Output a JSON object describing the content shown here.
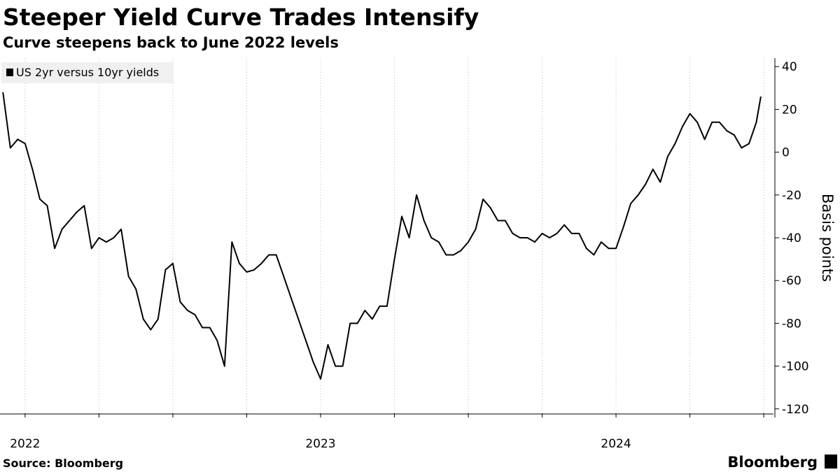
{
  "chart_data": {
    "type": "line",
    "title": "Steeper Yield Curve Trades Intensify",
    "subtitle": "Curve steepens back to June 2022 levels",
    "ylabel": "Basis points",
    "source": "Source: Bloomberg",
    "brand": "Bloomberg",
    "x": [
      2021.925,
      2021.95,
      2021.975,
      2022.0,
      2022.025,
      2022.05,
      2022.075,
      2022.1,
      2022.125,
      2022.15,
      2022.175,
      2022.2,
      2022.225,
      2022.25,
      2022.275,
      2022.3,
      2022.325,
      2022.35,
      2022.375,
      2022.4,
      2022.425,
      2022.45,
      2022.475,
      2022.5,
      2022.525,
      2022.55,
      2022.575,
      2022.6,
      2022.625,
      2022.65,
      2022.675,
      2022.7,
      2022.725,
      2022.75,
      2022.775,
      2022.8,
      2022.825,
      2022.85,
      2022.875,
      2022.9,
      2022.925,
      2022.95,
      2022.975,
      2023.0,
      2023.025,
      2023.05,
      2023.075,
      2023.1,
      2023.125,
      2023.15,
      2023.175,
      2023.2,
      2023.225,
      2023.25,
      2023.275,
      2023.3,
      2023.325,
      2023.35,
      2023.375,
      2023.4,
      2023.425,
      2023.45,
      2023.475,
      2023.5,
      2023.525,
      2023.55,
      2023.575,
      2023.6,
      2023.625,
      2023.65,
      2023.675,
      2023.7,
      2023.725,
      2023.75,
      2023.775,
      2023.8,
      2023.825,
      2023.85,
      2023.875,
      2023.9,
      2023.925,
      2023.95,
      2023.975,
      2024.0,
      2024.025,
      2024.05,
      2024.075,
      2024.1,
      2024.125,
      2024.15,
      2024.175,
      2024.2,
      2024.225,
      2024.25,
      2024.275,
      2024.3,
      2024.325,
      2024.35,
      2024.375,
      2024.4,
      2024.425,
      2024.45,
      2024.475,
      2024.49
    ],
    "series": [
      {
        "name": "US 2yr versus 10yr yields",
        "color": "#000000",
        "values": [
          28,
          2,
          6,
          4,
          -8,
          -22,
          -25,
          -45,
          -36,
          -32,
          -28,
          -25,
          -45,
          -40,
          -42,
          -40,
          -36,
          -58,
          -64,
          -78,
          -83,
          -78,
          -55,
          -52,
          -70,
          -74,
          -76,
          -82,
          -82,
          -88,
          -100,
          -42,
          -52,
          -56,
          -55,
          -52,
          -48,
          -48,
          -58,
          -68,
          -78,
          -88,
          -98,
          -106,
          -90,
          -100,
          -100,
          -80,
          -80,
          -74,
          -78,
          -72,
          -72,
          -50,
          -30,
          -40,
          -20,
          -32,
          -40,
          -42,
          -48,
          -48,
          -46,
          -42,
          -36,
          -22,
          -26,
          -32,
          -32,
          -38,
          -40,
          -40,
          -42,
          -38,
          -40,
          -38,
          -34,
          -38,
          -38,
          -45,
          -48,
          -42,
          -45,
          -45,
          -35,
          -24,
          -20,
          -15,
          -8,
          -14,
          -2,
          4,
          12,
          18,
          14,
          6,
          14,
          14,
          10,
          8,
          2,
          4,
          14,
          26
        ]
      }
    ],
    "xlim": [
      2021.915,
      2024.533
    ],
    "xticks": [
      2022,
      2023,
      2024
    ],
    "xgrid": [
      2022,
      2022.25,
      2022.5,
      2022.75,
      2023,
      2023.25,
      2023.5,
      2023.75,
      2024,
      2024.25,
      2024.5
    ],
    "ylim": [
      -124,
      44
    ],
    "yticks": [
      40,
      20,
      0,
      -20,
      -40,
      -60,
      -80,
      -100,
      -120
    ],
    "legend": "top-left"
  }
}
